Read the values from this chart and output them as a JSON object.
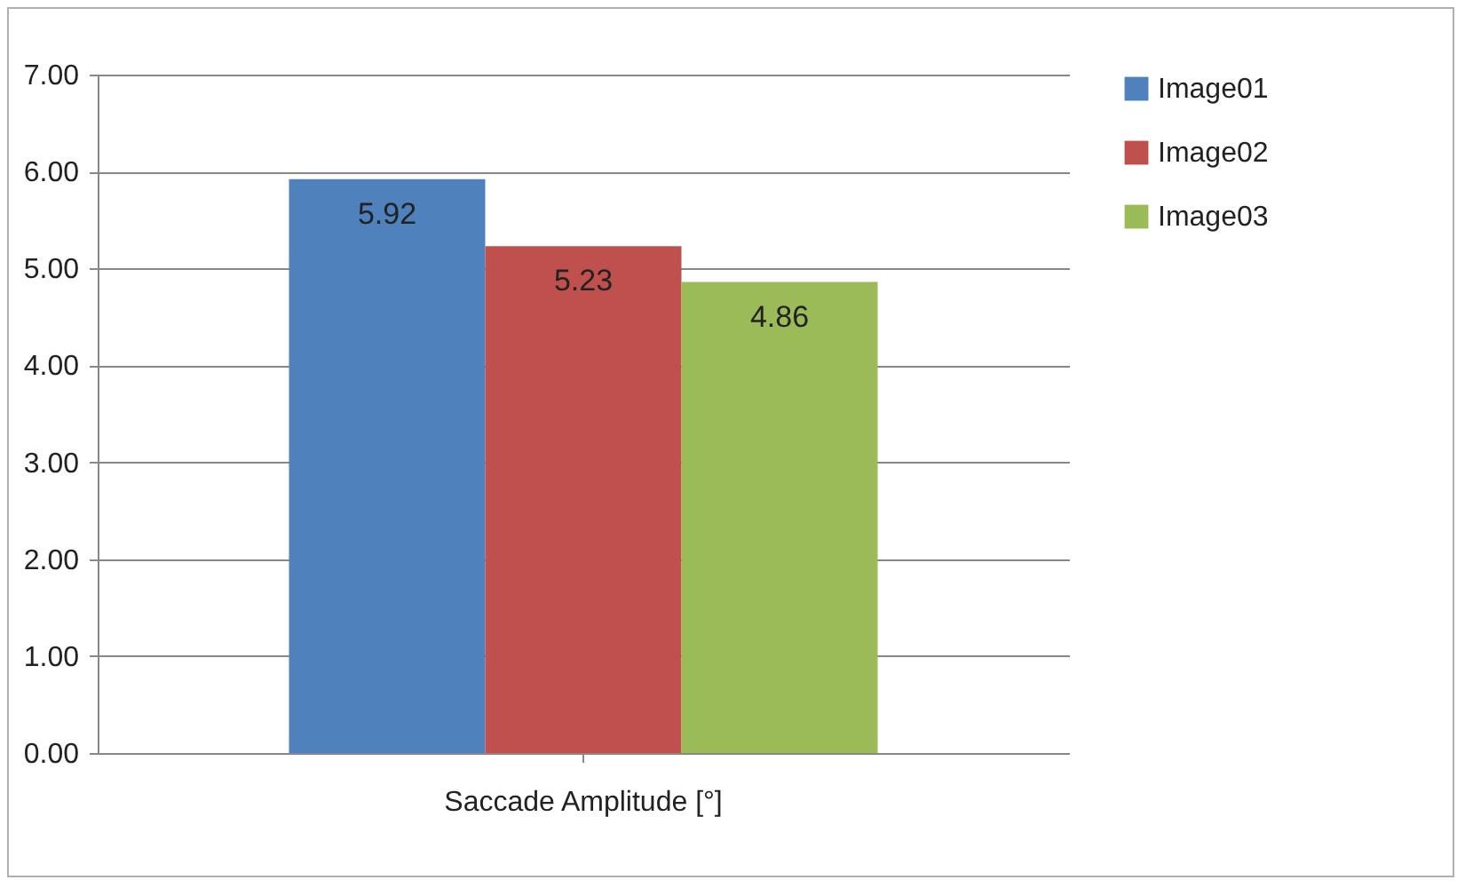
{
  "chart_data": {
    "type": "bar",
    "categories": [
      "Saccade Amplitude [°]"
    ],
    "series": [
      {
        "name": "Image01",
        "color": "#4f81bd",
        "values": [
          5.92
        ]
      },
      {
        "name": "Image02",
        "color": "#c0504d",
        "values": [
          5.23
        ]
      },
      {
        "name": "Image03",
        "color": "#9bbb59",
        "values": [
          4.86
        ]
      }
    ],
    "ylim": [
      0,
      7
    ],
    "yticks": [
      {
        "value": 0,
        "label": "0.00"
      },
      {
        "value": 1,
        "label": "1.00"
      },
      {
        "value": 2,
        "label": "2.00"
      },
      {
        "value": 3,
        "label": "3.00"
      },
      {
        "value": 4,
        "label": "4.00"
      },
      {
        "value": 5,
        "label": "5.00"
      },
      {
        "value": 6,
        "label": "6.00"
      },
      {
        "value": 7,
        "label": "7.00"
      }
    ],
    "data_labels": true,
    "grid": "y",
    "legend": "right"
  }
}
